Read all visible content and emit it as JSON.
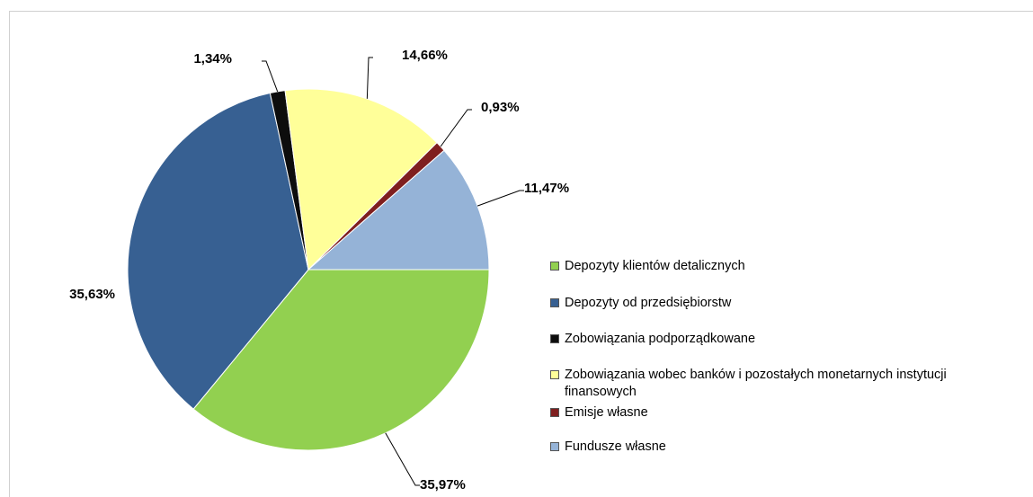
{
  "chart_data": {
    "type": "pie",
    "categories": [
      "Depozyty klientów detalicznych",
      "Depozyty od przedsiębiorstw",
      "Zobowiązania podporządkowane",
      "Zobowiązania wobec banków i pozostałych monetarnych instytucji finansowych",
      "Emisje własne",
      "Fundusze własne"
    ],
    "values": [
      35.97,
      35.63,
      1.34,
      14.66,
      0.93,
      11.47
    ],
    "value_labels": [
      "35,97%",
      "35,63%",
      "1,34%",
      "14,66%",
      "0,93%",
      "11,47%"
    ],
    "colors": [
      "#92d050",
      "#376092",
      "#0d0d0d",
      "#ffff99",
      "#7f1f1f",
      "#95b3d7"
    ],
    "legend": "right"
  }
}
